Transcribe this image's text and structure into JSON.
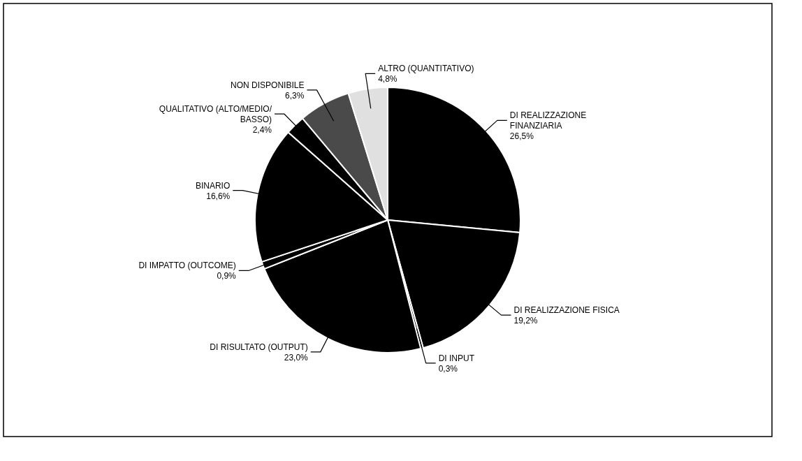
{
  "chart_data": {
    "type": "pie",
    "categories": [
      "DI REALIZZAZIONE FINANZIARIA",
      "DI REALIZZAZIONE FISICA",
      "DI INPUT",
      "DI RISULTATO (OUTPUT)",
      "DI IMPATTO (OUTCOME)",
      "BINARIO",
      "QUALITATIVO (ALTO/MEDIO/ BASSO)",
      "NON DISPONIBILE",
      "ALTRO (QUANTITATIVO)"
    ],
    "values": [
      26.5,
      19.2,
      0.3,
      23.0,
      0.9,
      16.6,
      2.4,
      6.3,
      4.8
    ],
    "value_labels": [
      "26,5%",
      "19,2%",
      "0,3%",
      "23,0%",
      "0,9%",
      "16,6%",
      "2,4%",
      "6,3%",
      "4,8%"
    ],
    "colors": [
      "#000000",
      "#000000",
      "#000000",
      "#000000",
      "#000000",
      "#000000",
      "#000000",
      "#4a4a4a",
      "#e0e0e0"
    ]
  }
}
